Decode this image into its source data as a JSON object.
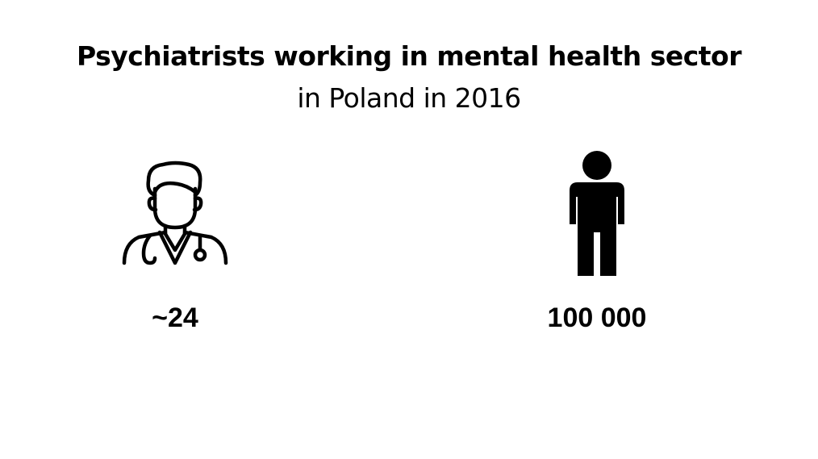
{
  "title": "Psychiatrists working in mental health sector",
  "subtitle": "in Poland in 2016",
  "left": {
    "icon": "doctor-icon",
    "value": "~24"
  },
  "right": {
    "icon": "person-icon",
    "value": "100 000"
  },
  "colors": {
    "text": "#000000",
    "background": "#ffffff"
  }
}
